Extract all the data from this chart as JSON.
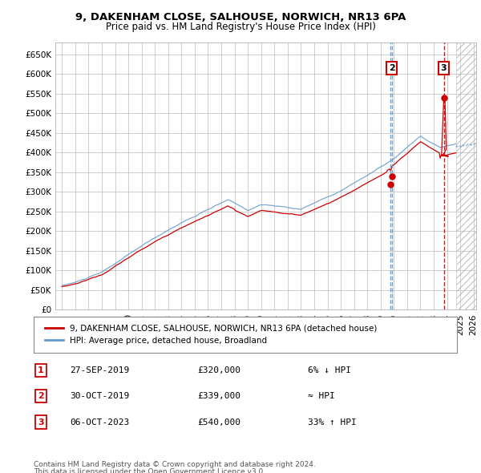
{
  "title": "9, DAKENHAM CLOSE, SALHOUSE, NORWICH, NR13 6PA",
  "subtitle": "Price paid vs. HM Land Registry's House Price Index (HPI)",
  "ylim": [
    0,
    680000
  ],
  "yticks": [
    0,
    50000,
    100000,
    150000,
    200000,
    250000,
    300000,
    350000,
    400000,
    450000,
    500000,
    550000,
    600000,
    650000
  ],
  "ytick_labels": [
    "£0",
    "£50K",
    "£100K",
    "£150K",
    "£200K",
    "£250K",
    "£300K",
    "£350K",
    "£400K",
    "£450K",
    "£500K",
    "£550K",
    "£600K",
    "£650K"
  ],
  "hpi_color": "#6699cc",
  "price_color": "#cc0000",
  "sales": [
    {
      "label": "1",
      "date_str": "27-SEP-2019",
      "price": 320000,
      "hpi_note": "6% ↓ HPI",
      "x_approx": 2019.74,
      "vline_color": "#6699cc",
      "vline_style": "--",
      "show_box_on_chart": false
    },
    {
      "label": "2",
      "date_str": "30-OCT-2019",
      "price": 339000,
      "hpi_note": "≈ HPI",
      "x_approx": 2019.83,
      "vline_color": "#6699cc",
      "vline_style": "--",
      "show_box_on_chart": true
    },
    {
      "label": "3",
      "date_str": "06-OCT-2023",
      "price": 540000,
      "hpi_note": "33% ↑ HPI",
      "x_approx": 2023.76,
      "vline_color": "#cc0000",
      "vline_style": "--",
      "show_box_on_chart": true
    }
  ],
  "legend_property": "9, DAKENHAM CLOSE, SALHOUSE, NORWICH, NR13 6PA (detached house)",
  "legend_hpi": "HPI: Average price, detached house, Broadland",
  "footnote1": "Contains HM Land Registry data © Crown copyright and database right 2024.",
  "footnote2": "This data is licensed under the Open Government Licence v3.0.",
  "table_rows": [
    [
      "1",
      "27-SEP-2019",
      "£320,000",
      "6% ↓ HPI"
    ],
    [
      "2",
      "30-OCT-2019",
      "£339,000",
      "≈ HPI"
    ],
    [
      "3",
      "06-OCT-2023",
      "£540,000",
      "33% ↑ HPI"
    ]
  ],
  "future_start_x": 2024.67,
  "xlim": [
    1994.5,
    2026.2
  ]
}
